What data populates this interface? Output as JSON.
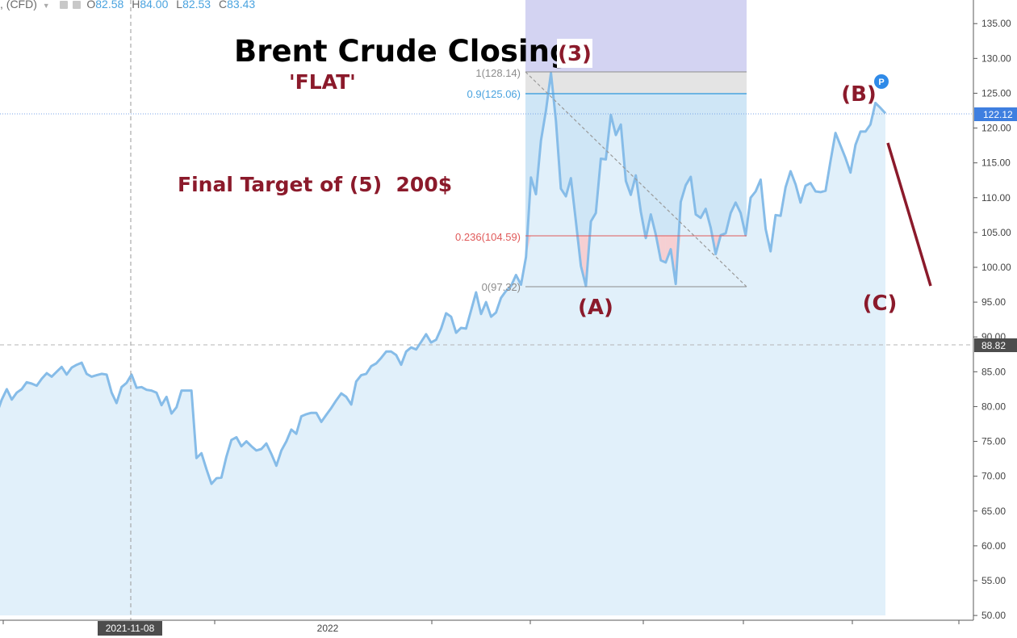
{
  "header": {
    "symbol_suffix": ", (CFD)",
    "open_label": "O",
    "open": "82.58",
    "high_label": "H",
    "high": "84.00",
    "low_label": "L",
    "low": "82.53",
    "close_label": "C",
    "close": "83.43"
  },
  "annotations": {
    "title": "Brent Crude Closing",
    "wave_3": "(3)",
    "flat": "'FLAT'",
    "target": "Final Target of (5)  200$",
    "wave_a": "(A)",
    "wave_b": "(B)",
    "wave_c": "(C)",
    "marker_p": "P"
  },
  "price_labels": {
    "current": "122.12",
    "dashed": "88.82"
  },
  "fib_levels": [
    {
      "label": "1(128.14)",
      "value": 128.14,
      "color": "#8c8c8c"
    },
    {
      "label": "0.9(125.06)",
      "value": 125.06,
      "color": "#4aa3df"
    },
    {
      "label": "0.236(104.59)",
      "value": 104.59,
      "color": "#e05a5a"
    },
    {
      "label": "0(97.32)",
      "value": 97.32,
      "color": "#8c8c8c"
    }
  ],
  "colors": {
    "line": "#86bce8",
    "area": "#e1f0fa",
    "wave_text": "#8b1a2b",
    "projection": "#8b1a2b",
    "current_badge": "#3f7fe0",
    "dashed_badge": "#4d4d4d"
  },
  "chart_data": {
    "type": "area",
    "title": "Brent Crude Closing",
    "y_axis": {
      "range": [
        50,
        137
      ],
      "ticks": [
        "135.00",
        "130.00",
        "125.00",
        "120.00",
        "115.00",
        "110.00",
        "105.00",
        "100.00",
        "95.00",
        "90.00",
        "85.00",
        "80.00",
        "75.00",
        "70.00",
        "65.00",
        "60.00",
        "55.00",
        "50.00"
      ]
    },
    "x_axis": {
      "tick_labels": [
        "2021-11-08",
        "2022"
      ]
    },
    "grid": false,
    "series": [
      {
        "values": [
          79,
          81,
          82.5,
          81,
          82,
          82.5,
          83.5,
          83.3,
          83,
          84,
          84.8,
          84.3,
          85,
          85.7,
          84.6,
          85.6,
          86,
          86.3,
          84.7,
          84.3,
          84.5,
          84.7,
          84.6,
          82,
          80.5,
          82.8,
          83.4,
          84.6,
          82.7,
          82.8,
          82.4,
          82.3,
          82,
          80.2,
          81.4,
          79,
          79.9,
          82.3,
          82.3,
          82.3,
          72.6,
          73.3,
          71,
          68.9,
          69.7,
          69.8,
          72.8,
          75.2,
          75.6,
          74.3,
          75,
          74.3,
          73.7,
          73.9,
          74.7,
          73.2,
          71.5,
          73.7,
          75,
          76.7,
          76.1,
          78.6,
          78.9,
          79.1,
          79.1,
          77.8,
          78.8,
          79.8,
          80.9,
          81.9,
          81.4,
          80.3,
          83.6,
          84.5,
          84.7,
          85.8,
          86.2,
          87,
          87.9,
          87.9,
          87.4,
          86,
          87.9,
          88.5,
          88.2,
          89.3,
          90.4,
          89.2,
          89.6,
          91.2,
          93.4,
          92.9,
          90.6,
          91.3,
          91.2,
          93.8,
          96.4,
          93.3,
          95,
          92.9,
          93.5,
          95.6,
          96.6,
          97.3,
          98.9,
          97.5,
          101.5,
          112.9,
          110.5,
          118.2,
          122.5,
          127.9,
          121,
          111.3,
          110.2,
          112.8,
          106.6,
          100.2,
          97.3,
          106.6,
          107.8,
          115.6,
          115.5,
          121.9,
          119,
          120.5,
          112.4,
          110.4,
          113.2,
          108,
          104.2,
          107.6,
          104.7,
          101,
          100.7,
          102.6,
          97.6,
          109.4,
          111.8,
          113,
          107.6,
          107.1,
          108.4,
          105.7,
          101.9,
          104.6,
          104.9,
          107.8,
          109.3,
          107.8,
          104.6,
          110,
          110.9,
          112.6,
          105.5,
          102.3,
          107.5,
          107.4,
          111.5,
          113.8,
          111.9,
          109.3,
          111.7,
          112.1,
          110.9,
          110.8,
          111,
          115.3,
          119.3,
          117.5,
          115.7,
          113.6,
          117.6,
          119.5,
          119.5,
          120.5,
          123.6,
          122.9,
          122.12
        ]
      }
    ],
    "fibonacci": [
      {
        "ratio": "1",
        "value": 128.14
      },
      {
        "ratio": "0.9",
        "value": 125.06
      },
      {
        "ratio": "0.236",
        "value": 104.59
      },
      {
        "ratio": "0",
        "value": 97.32
      }
    ],
    "projection": {
      "from": 122.12,
      "to": 97.5
    }
  }
}
